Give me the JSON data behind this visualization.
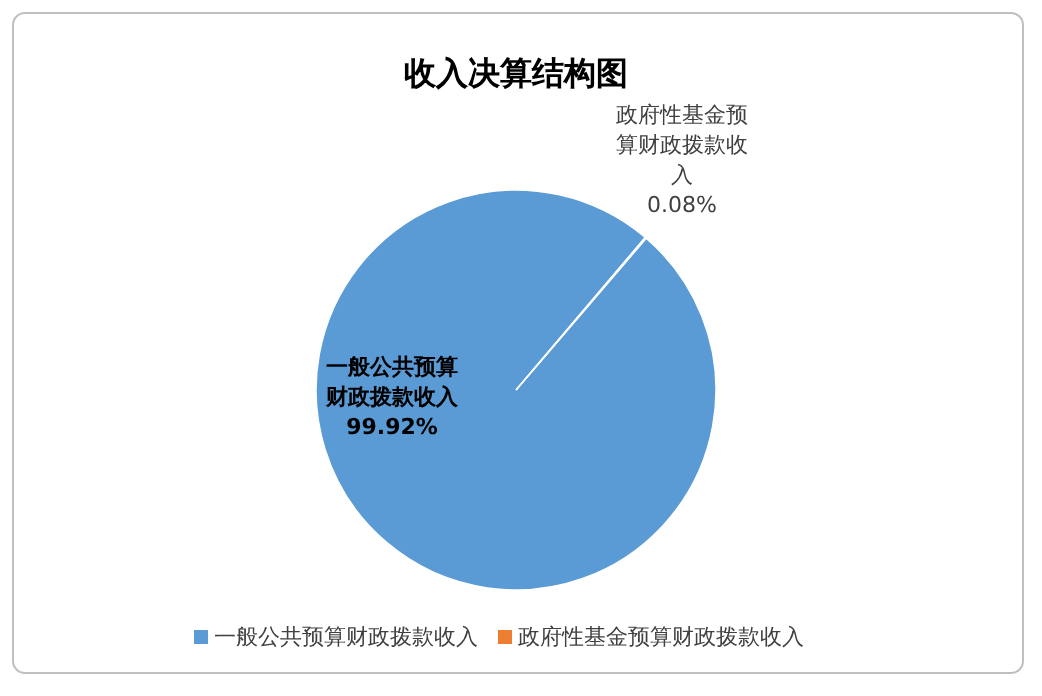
{
  "chart_data": {
    "type": "pie",
    "title": "收入决算结构图",
    "categories": [
      "一般公共预算财政拨款收入",
      "政府性基金预算财政拨款收入"
    ],
    "values": [
      99.92,
      0.08
    ],
    "colors": [
      "#5b9bd5",
      "#ed7d31"
    ],
    "value_labels": [
      "99.92%",
      "0.08%"
    ],
    "legend": "bottom"
  }
}
